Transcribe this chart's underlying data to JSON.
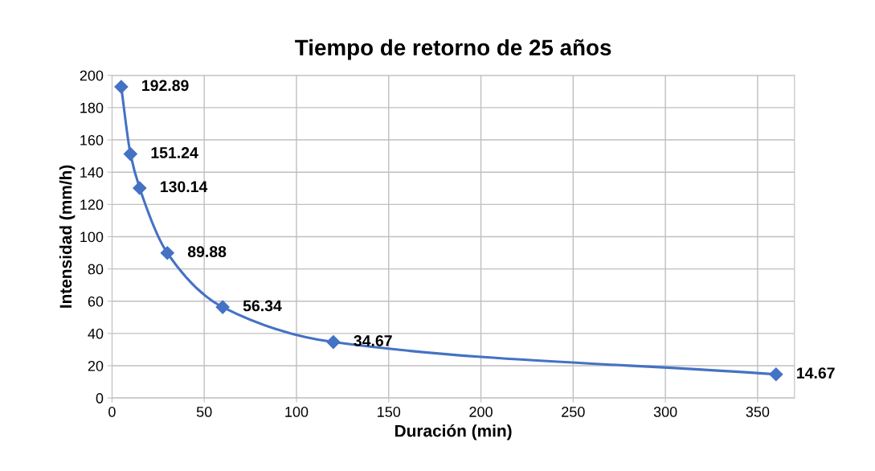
{
  "chart_data": {
    "type": "line",
    "title": "Tiempo de retorno de 25 años",
    "xlabel": "Duración (min)",
    "ylabel": "Intensidad (mm/h)",
    "x": [
      5,
      10,
      15,
      30,
      60,
      120,
      360
    ],
    "series": [
      {
        "color": "#4472c4",
        "values": [
          192.89,
          151.24,
          130.14,
          89.88,
          56.34,
          34.67,
          14.67
        ]
      }
    ],
    "data_labels": true,
    "marker": "diamond",
    "line_style": "solid",
    "grid": true,
    "xlim": [
      0,
      370
    ],
    "xticks": [
      0,
      50,
      100,
      150,
      200,
      250,
      300,
      350
    ],
    "ylim": [
      0,
      200
    ],
    "yticks": [
      0,
      20,
      40,
      60,
      80,
      100,
      120,
      140,
      160,
      180,
      200
    ]
  }
}
